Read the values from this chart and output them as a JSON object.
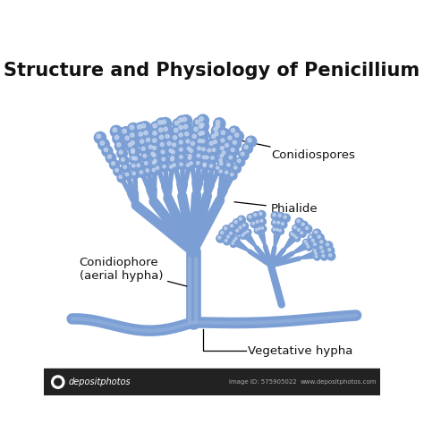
{
  "title": "Structure and Physiology of Penicillium",
  "title_fontsize": 15,
  "title_fontweight": "bold",
  "bg_color": "#ffffff",
  "mold_color": "#7b9fd4",
  "mold_color_mid": "#8aaade",
  "text_color": "#111111",
  "labels": {
    "conidiospores": "Conidiospores",
    "phialide": "Phialide",
    "conidiophore": "Conidiophore\n(aerial hypha)",
    "vegetative": "Vegetative hypha"
  },
  "watermark": "depositphotos",
  "image_id": "Image ID: 575905022",
  "website": "www.depositphotos.com",
  "figsize": [
    4.74,
    4.93
  ],
  "dpi": 100
}
